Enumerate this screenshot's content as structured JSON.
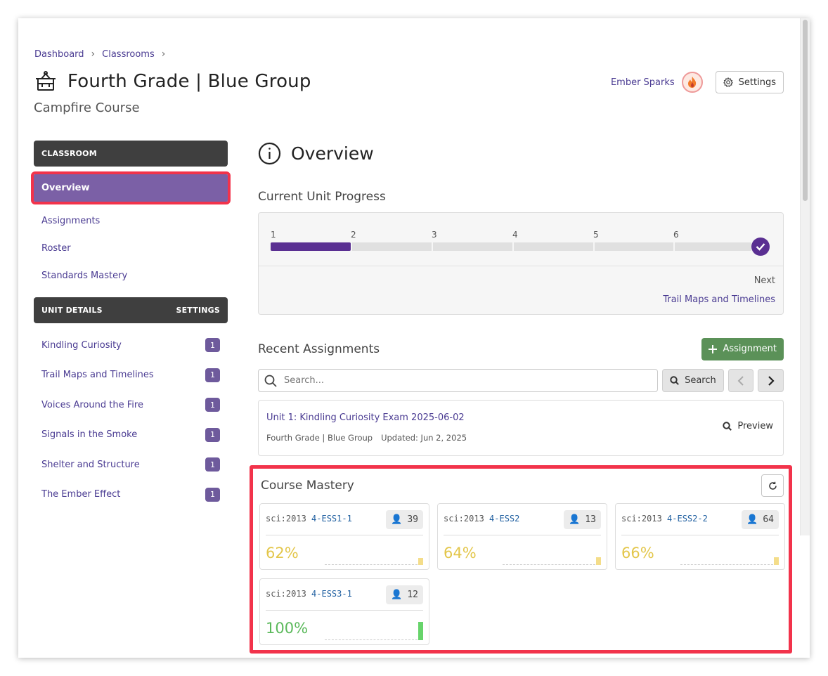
{
  "breadcrumb": {
    "items": [
      "Dashboard",
      "Classrooms"
    ]
  },
  "header": {
    "title": "Fourth Grade | Blue Group",
    "subtitle": "Campfire Course",
    "user_name": "Ember Sparks",
    "settings_label": "Settings"
  },
  "sidebar": {
    "classroom_header": "CLASSROOM",
    "nav": [
      "Overview",
      "Assignments",
      "Roster",
      "Standards Mastery"
    ],
    "active": "Overview",
    "unit_header": "UNIT DETAILS",
    "unit_settings": "SETTINGS",
    "units": [
      {
        "label": "Kindling Curiosity",
        "count": "1"
      },
      {
        "label": "Trail Maps and Timelines",
        "count": "1"
      },
      {
        "label": "Voices Around the Fire",
        "count": "1"
      },
      {
        "label": "Signals in the Smoke",
        "count": "1"
      },
      {
        "label": "Shelter and Structure",
        "count": "1"
      },
      {
        "label": "The Ember Effect",
        "count": "1"
      }
    ]
  },
  "main": {
    "overview_title": "Overview",
    "progress": {
      "title": "Current Unit Progress",
      "steps": [
        "1",
        "2",
        "3",
        "4",
        "5",
        "6"
      ],
      "completed_fraction": 0.167,
      "next_label": "Next",
      "next_link": "Trail Maps and Timelines"
    },
    "recent": {
      "title": "Recent Assignments",
      "add_label": "Assignment",
      "search_placeholder": "Search...",
      "search_button": "Search",
      "assignment": {
        "title": "Unit 1: Kindling Curiosity Exam 2025-06-02",
        "group": "Fourth Grade | Blue Group",
        "updated": "Updated: Jun 2, 2025",
        "preview_label": "Preview"
      }
    },
    "mastery": {
      "title": "Course Mastery",
      "cards": [
        {
          "prefix": "sci:2013",
          "code": "4-ESS1-1",
          "students": "39",
          "percent": "62%",
          "value": 0.62,
          "color": "#e3c64a",
          "bar_color": "#f4dd8a"
        },
        {
          "prefix": "sci:2013",
          "code": "4-ESS2",
          "students": "13",
          "percent": "64%",
          "value": 0.64,
          "color": "#e3c64a",
          "bar_color": "#f4dd8a"
        },
        {
          "prefix": "sci:2013",
          "code": "4-ESS2-2",
          "students": "64",
          "percent": "66%",
          "value": 0.66,
          "color": "#e3c64a",
          "bar_color": "#f4dd8a"
        },
        {
          "prefix": "sci:2013",
          "code": "4-ESS3-1",
          "students": "12",
          "percent": "100%",
          "value": 1.0,
          "color": "#5bb95b",
          "bar_color": "#67d46b"
        }
      ]
    }
  },
  "colors": {
    "accent": "#4a3b92",
    "active_nav": "#7b60a6",
    "progress": "#5a2f92",
    "highlight": "#f2334b",
    "add_button": "#5b9158"
  }
}
